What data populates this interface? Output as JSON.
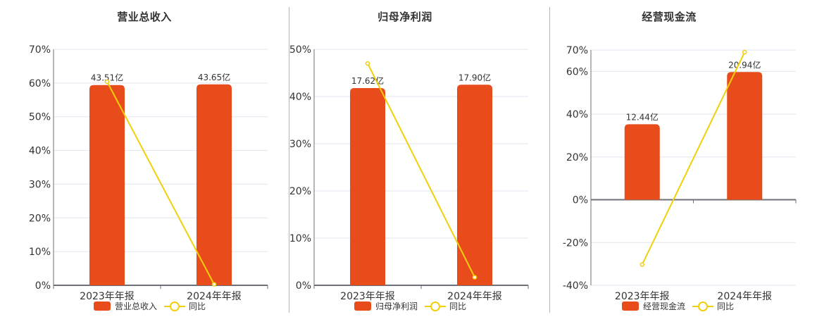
{
  "colors": {
    "bar": "#e84c1b",
    "line": "#f2cf0b",
    "grid": "#dfe5ef",
    "axis": "#6e7079",
    "text": "#333333"
  },
  "legend": {
    "line_label": "同比"
  },
  "charts": [
    {
      "title": "营业总收入",
      "bar_legend": "营业总收入",
      "categories": [
        "2023年年报",
        "2024年年报"
      ],
      "bar_labels": [
        "43.51亿",
        "43.65亿"
      ],
      "bar_pct": [
        59.4,
        59.6
      ],
      "yoy_pct": [
        60.4,
        0.3
      ],
      "yticks": [
        0,
        10,
        20,
        30,
        40,
        50,
        60,
        70
      ],
      "ylim": [
        0,
        70
      ]
    },
    {
      "title": "归母净利润",
      "bar_legend": "归母净利润",
      "categories": [
        "2023年年报",
        "2024年年报"
      ],
      "bar_labels": [
        "17.62亿",
        "17.90亿"
      ],
      "bar_pct": [
        41.8,
        42.5
      ],
      "yoy_pct": [
        47.0,
        1.7
      ],
      "yticks": [
        0,
        10,
        20,
        30,
        40,
        50
      ],
      "ylim": [
        0,
        50
      ]
    },
    {
      "title": "经营现金流",
      "bar_legend": "经营现金流",
      "categories": [
        "2023年年报",
        "2024年年报"
      ],
      "bar_labels": [
        "12.44亿",
        "20.94亿"
      ],
      "bar_pct": [
        35.3,
        59.7
      ],
      "yoy_pct": [
        -30.3,
        69.0
      ],
      "yticks": [
        -40,
        -20,
        0,
        20,
        40,
        60,
        70
      ],
      "ylim": [
        -40,
        70
      ]
    }
  ],
  "chart_data": [
    {
      "type": "bar",
      "title": "营业总收入",
      "categories": [
        "2023年年报",
        "2024年年报"
      ],
      "series": [
        {
          "name": "营业总收入",
          "type": "bar",
          "values": [
            43.51,
            43.65
          ],
          "unit": "亿",
          "labels": [
            "43.51亿",
            "43.65亿"
          ]
        },
        {
          "name": "同比",
          "type": "line",
          "values": [
            60.4,
            0.3
          ],
          "unit": "%"
        }
      ],
      "xlabel": "",
      "ylabel": "",
      "ylim": [
        0,
        70
      ],
      "yticks": [
        "0%",
        "10%",
        "20%",
        "30%",
        "40%",
        "50%",
        "60%",
        "70%"
      ],
      "grid": true,
      "legend_position": "bottom"
    },
    {
      "type": "bar",
      "title": "归母净利润",
      "categories": [
        "2023年年报",
        "2024年年报"
      ],
      "series": [
        {
          "name": "归母净利润",
          "type": "bar",
          "values": [
            17.62,
            17.9
          ],
          "unit": "亿",
          "labels": [
            "17.62亿",
            "17.90亿"
          ]
        },
        {
          "name": "同比",
          "type": "line",
          "values": [
            47.0,
            1.7
          ],
          "unit": "%"
        }
      ],
      "xlabel": "",
      "ylabel": "",
      "ylim": [
        0,
        50
      ],
      "yticks": [
        "0%",
        "10%",
        "20%",
        "30%",
        "40%",
        "50%"
      ],
      "grid": true,
      "legend_position": "bottom"
    },
    {
      "type": "bar",
      "title": "经营现金流",
      "categories": [
        "2023年年报",
        "2024年年报"
      ],
      "series": [
        {
          "name": "经营现金流",
          "type": "bar",
          "values": [
            12.44,
            20.94
          ],
          "unit": "亿",
          "labels": [
            "12.44亿",
            "20.94亿"
          ]
        },
        {
          "name": "同比",
          "type": "line",
          "values": [
            -30.3,
            69.0
          ],
          "unit": "%"
        }
      ],
      "xlabel": "",
      "ylabel": "",
      "ylim": [
        -40,
        70
      ],
      "yticks": [
        "-40%",
        "-20%",
        "0%",
        "20%",
        "40%",
        "60%",
        "70%"
      ],
      "grid": true,
      "legend_position": "bottom"
    }
  ]
}
